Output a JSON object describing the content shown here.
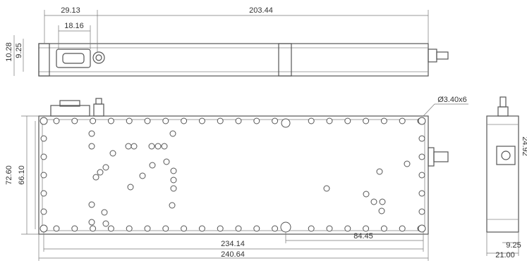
{
  "top_view": {
    "dimensions": {
      "connector_offset": "29.13",
      "length": "203.44",
      "connector_width": "18.16",
      "height_outer": "10.28",
      "height_inner": "9.25"
    }
  },
  "front_view": {
    "dimensions": {
      "hole_note": "Ø3.40x6",
      "height_outer": "72.60",
      "height_inner": "66.10",
      "hole_span": "234.14",
      "port_offset": "84.45",
      "length": "240.64"
    }
  },
  "side_view": {
    "dimensions": {
      "connector_height": "24.92",
      "connector_offset": "9.25",
      "width": "21.00"
    }
  }
}
